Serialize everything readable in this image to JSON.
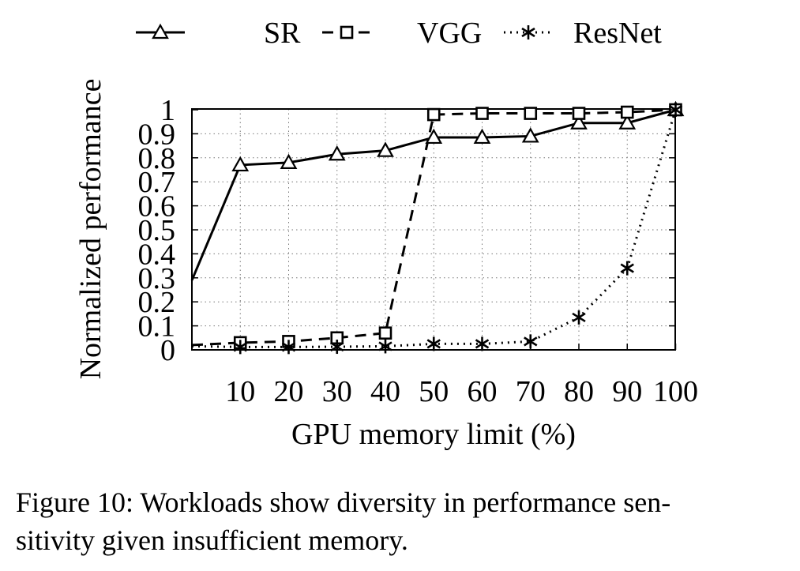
{
  "chart_data": {
    "type": "line",
    "xlabel": "GPU memory limit (%)",
    "ylabel": "Normalized performance",
    "x": [
      0,
      10,
      20,
      30,
      40,
      50,
      60,
      70,
      80,
      90,
      100
    ],
    "x_ticks": [
      10,
      20,
      30,
      40,
      50,
      60,
      70,
      80,
      90,
      100
    ],
    "y_ticks": [
      "0",
      "0.1",
      "0.2",
      "0.3",
      "0.4",
      "0.5",
      "0.6",
      "0.7",
      "0.8",
      "0.9",
      "1"
    ],
    "xlim": [
      0,
      100
    ],
    "ylim": [
      0,
      1
    ],
    "grid": true,
    "legend_position": "top",
    "series": [
      {
        "name": "SR",
        "style": "solid",
        "marker": "triangle",
        "values": [
          0.29,
          0.77,
          0.78,
          0.815,
          0.83,
          0.885,
          0.885,
          0.89,
          0.945,
          0.945,
          1.0
        ]
      },
      {
        "name": "VGG",
        "style": "dashed",
        "marker": "square",
        "values": [
          0.02,
          0.03,
          0.035,
          0.05,
          0.07,
          0.98,
          0.985,
          0.985,
          0.985,
          0.99,
          1.0
        ]
      },
      {
        "name": "ResNet",
        "style": "dotted",
        "marker": "star",
        "values": [
          0.015,
          0.012,
          0.012,
          0.013,
          0.015,
          0.025,
          0.025,
          0.035,
          0.135,
          0.34,
          1.0
        ]
      }
    ]
  },
  "caption": {
    "line1": "Figure 10: Workloads show diversity in performance sen-",
    "line2": "sitivity given insufficient memory."
  }
}
